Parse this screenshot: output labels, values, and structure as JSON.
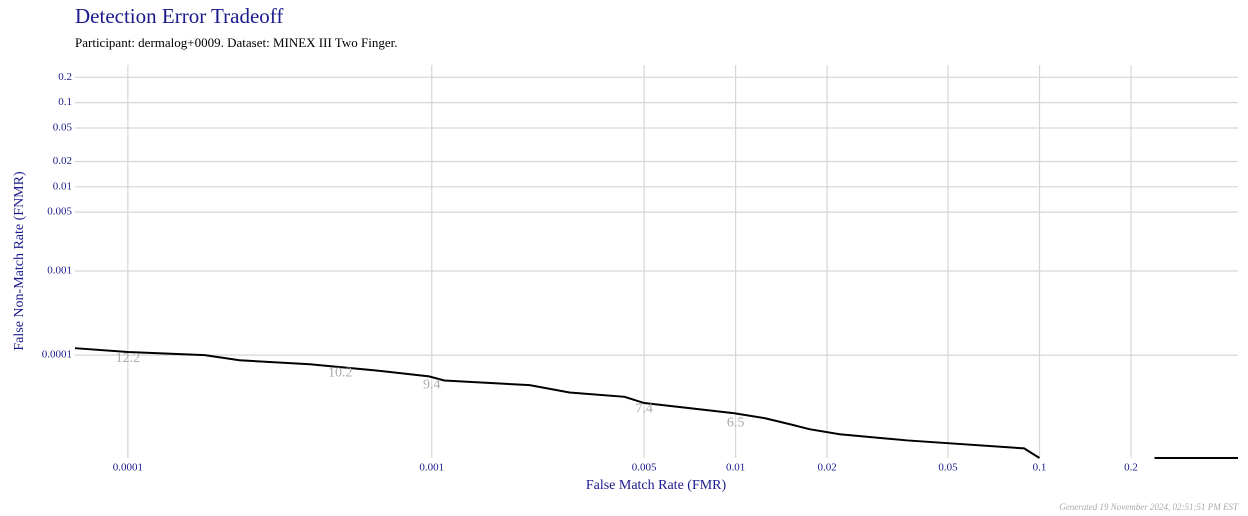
{
  "chart_data": {
    "type": "line",
    "title": "Detection Error Tradeoff",
    "subtitle": "Participant: dermalog+0009. Dataset: MINEX III Two Finger.",
    "xlabel": "False Match Rate (FMR)",
    "ylabel": "False Non-Match Rate (FNMR)",
    "footer": "Generated 19 November 2024, 02:51:51 PM EST",
    "xscale": "log",
    "yscale": "log",
    "grid": true,
    "xlim": [
      6.7e-05,
      0.45
    ],
    "ylim": [
      6e-06,
      0.28
    ],
    "xticks": [
      0.0001,
      0.001,
      0.005,
      0.01,
      0.02,
      0.05,
      0.1,
      0.2
    ],
    "yticks": [
      0.0001,
      0.001,
      0.005,
      0.01,
      0.02,
      0.05,
      0.1,
      0.2
    ],
    "series": [
      {
        "color": "#000000",
        "x": [
          6.7e-05,
          0.0001,
          0.000179,
          0.000233,
          0.000397,
          0.00065,
          0.00098,
          0.0011,
          0.0021,
          0.00284,
          0.00431,
          0.005,
          0.0071,
          0.0099,
          0.0125,
          0.0151,
          0.0175,
          0.022,
          0.0368,
          0.089,
          0.1,
          0.15,
          0.239,
          0.45
        ],
        "values": [
          0.000121,
          0.000109,
          0.0001,
          8.7e-05,
          7.8e-05,
          6.6e-05,
          5.6e-05,
          5e-05,
          4.4e-05,
          3.6e-05,
          3.2e-05,
          2.7e-05,
          2.34e-05,
          2.04e-05,
          1.78e-05,
          1.51e-05,
          1.32e-05,
          1.15e-05,
          9.7e-06,
          7.8e-06,
          6e-06,
          null,
          6e-06,
          6e-06
        ]
      }
    ],
    "annotations": [
      {
        "text": "12.2",
        "x": 0.0001,
        "y": 9.1e-05
      },
      {
        "text": "10.2",
        "x": 0.0005,
        "y": 6.1e-05
      },
      {
        "text": "9.4",
        "x": 0.001,
        "y": 4.4e-05
      },
      {
        "text": "7.4",
        "x": 0.005,
        "y": 2.26e-05
      },
      {
        "text": "6.5",
        "x": 0.01,
        "y": 1.55e-05
      }
    ]
  }
}
